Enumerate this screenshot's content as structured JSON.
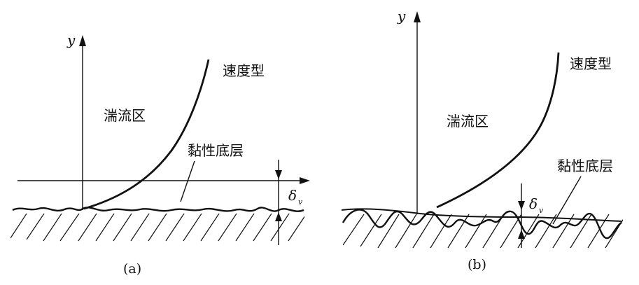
{
  "panels": [
    {
      "id": "a",
      "axis_label": "y",
      "velocity_profile_label": "速度型",
      "turbulent_zone_label": "湍流区",
      "viscous_sublayer_label": "黏性底层",
      "thickness_symbol": "δ",
      "thickness_subscript": "v",
      "caption": "(a)"
    },
    {
      "id": "b",
      "axis_label": "y",
      "velocity_profile_label": "速度型",
      "turbulent_zone_label": "湍流区",
      "viscous_sublayer_label": "黏性底层",
      "thickness_symbol": "δ",
      "thickness_subscript": "v",
      "caption": "(b)"
    }
  ]
}
